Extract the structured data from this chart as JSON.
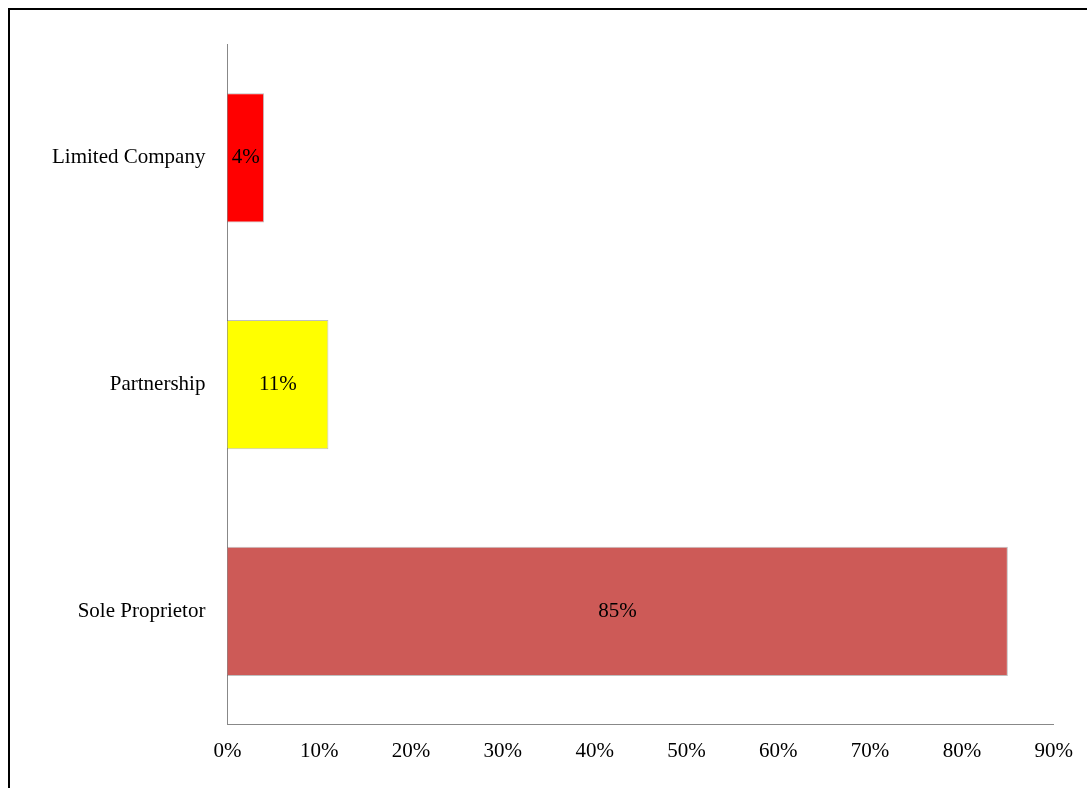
{
  "chart_data": {
    "type": "bar",
    "orientation": "horizontal",
    "categories": [
      "Limited Company",
      "Partnership",
      "Sole Proprietor"
    ],
    "values": [
      4,
      11,
      85
    ],
    "colors": [
      "#ff0000",
      "#ffff00",
      "#cd5a57"
    ],
    "value_labels": [
      "4%",
      "11%",
      "85%"
    ],
    "xlim": [
      0,
      90
    ],
    "xticks": [
      {
        "value": 0,
        "label": "0%"
      },
      {
        "value": 10,
        "label": "10%"
      },
      {
        "value": 20,
        "label": "20%"
      },
      {
        "value": 30,
        "label": "30%"
      },
      {
        "value": 40,
        "label": "40%"
      },
      {
        "value": 50,
        "label": "50%"
      },
      {
        "value": 60,
        "label": "60%"
      },
      {
        "value": 70,
        "label": "70%"
      },
      {
        "value": 80,
        "label": "80%"
      },
      {
        "value": 90,
        "label": "90%"
      }
    ],
    "grid": false,
    "legend": false
  }
}
